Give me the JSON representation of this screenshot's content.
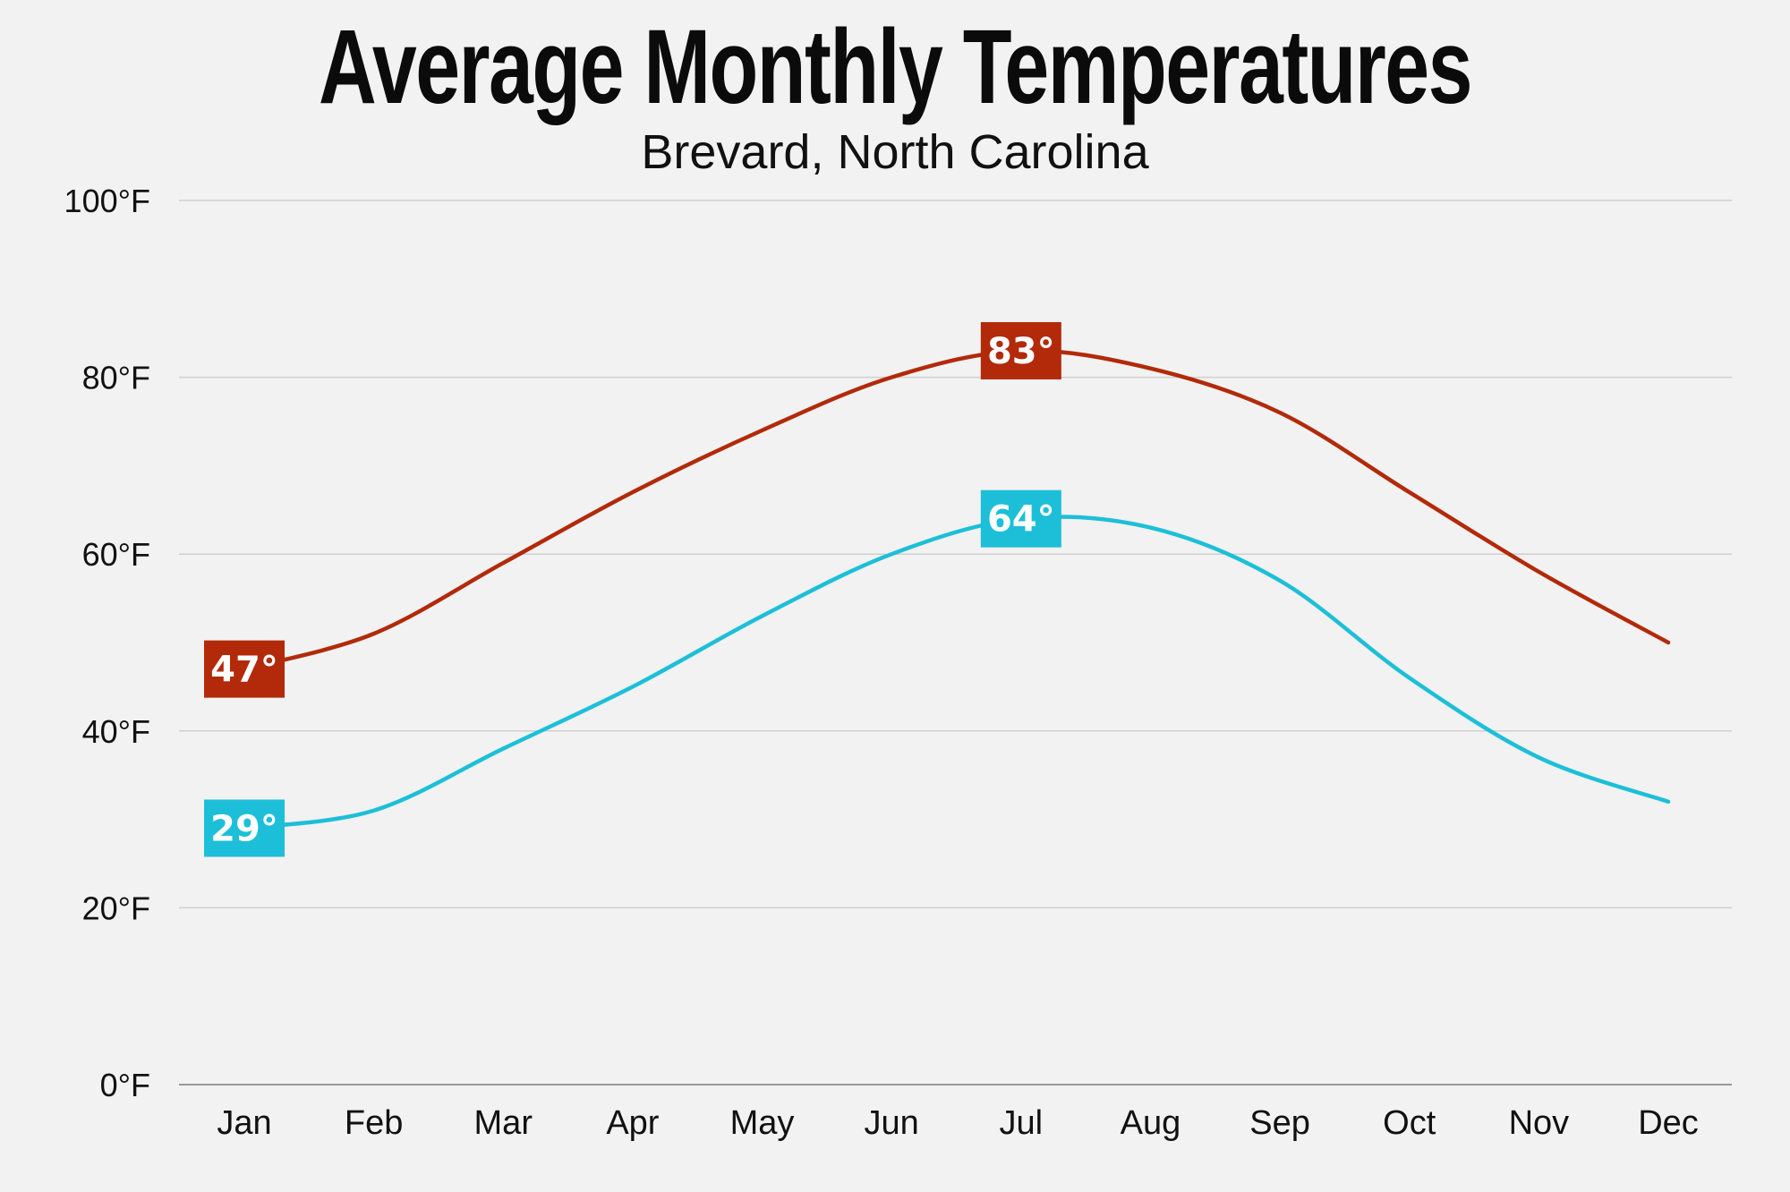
{
  "chart_data": {
    "type": "line",
    "title": "Average Monthly Temperatures",
    "subtitle": "Brevard, North Carolina",
    "xlabel": "",
    "ylabel": "",
    "categories": [
      "Jan",
      "Feb",
      "Mar",
      "Apr",
      "May",
      "Jun",
      "Jul",
      "Aug",
      "Sep",
      "Oct",
      "Nov",
      "Dec"
    ],
    "ylim": [
      0,
      100
    ],
    "yticks": [
      0,
      20,
      40,
      60,
      80,
      100
    ],
    "ytick_labels": [
      "0°F",
      "20°F",
      "40°F",
      "60°F",
      "80°F",
      "100°F"
    ],
    "grid": true,
    "legend": "none",
    "series": [
      {
        "values": [
          47,
          51,
          59,
          67,
          74,
          80,
          83,
          81,
          76,
          67,
          58,
          50
        ],
        "color": "#b22a0a",
        "annotations": [
          {
            "index": 0,
            "text": "47°"
          },
          {
            "index": 6,
            "text": "83°"
          }
        ]
      },
      {
        "values": [
          29,
          31,
          38,
          45,
          53,
          60,
          64,
          63,
          57,
          46,
          37,
          32
        ],
        "color": "#1dbfd8",
        "annotations": [
          {
            "index": 0,
            "text": "29°"
          },
          {
            "index": 6,
            "text": "64°"
          }
        ]
      }
    ]
  }
}
